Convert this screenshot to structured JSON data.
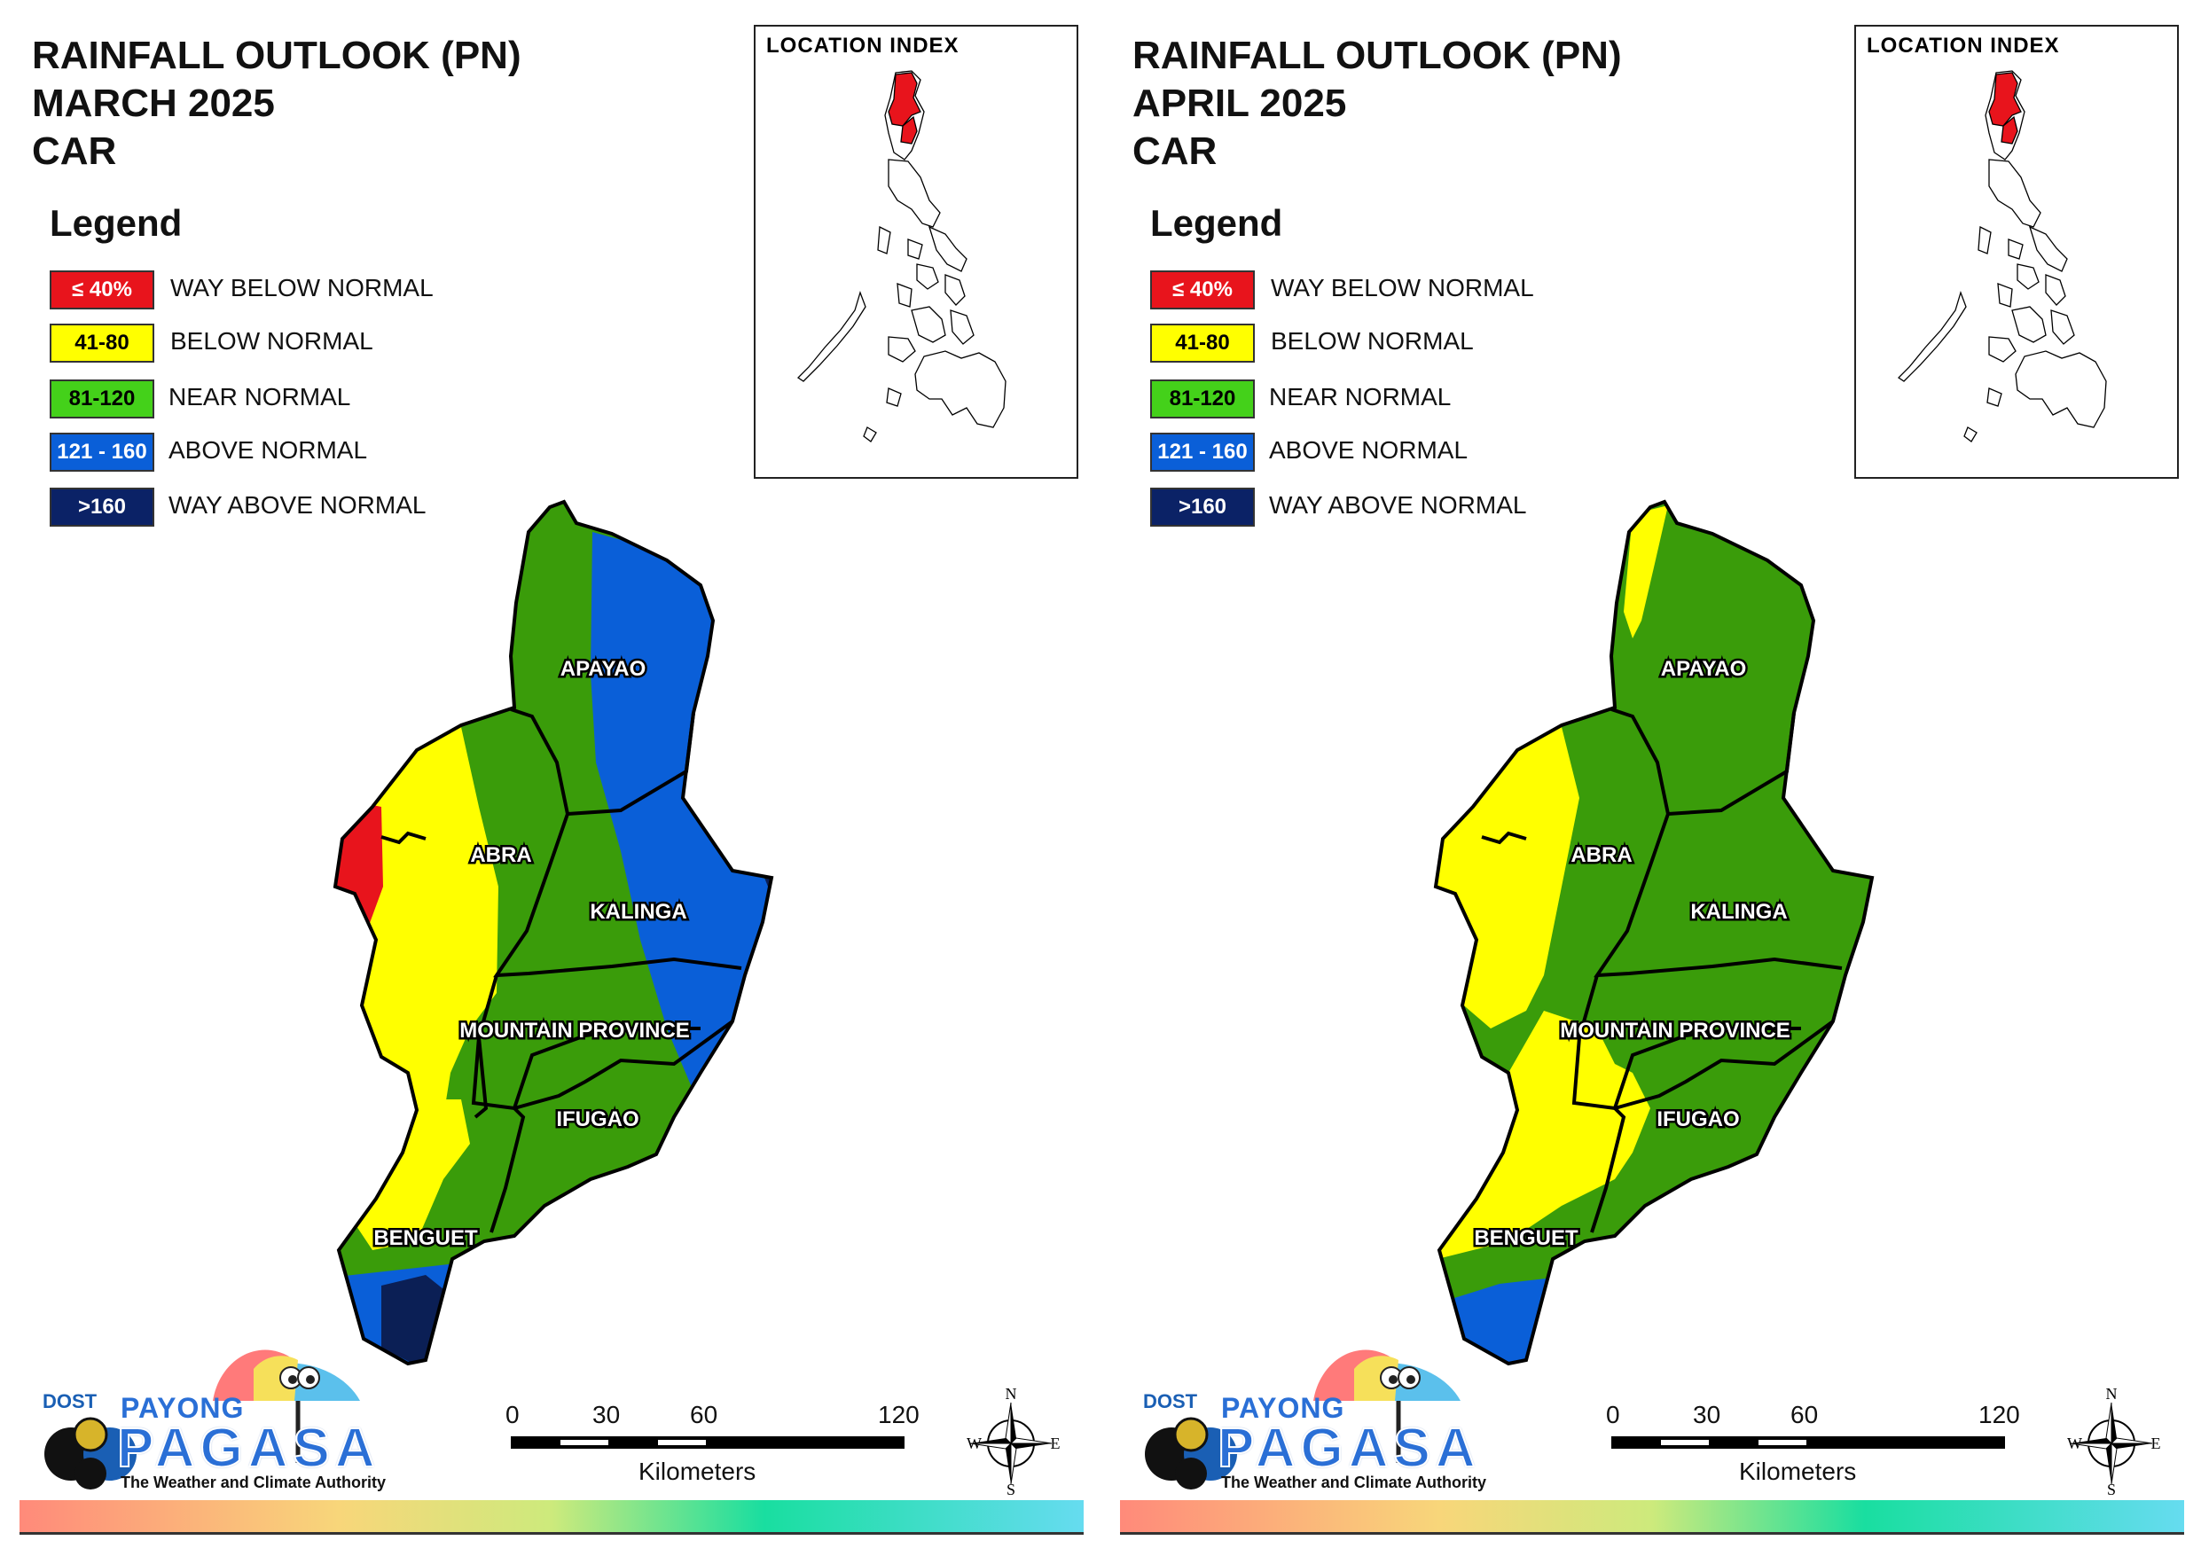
{
  "panels": [
    {
      "title_lines": [
        "RAINFALL OUTLOOK (PN)",
        "MARCH 2025",
        "CAR"
      ],
      "location_index_title": "LOCATION INDEX",
      "provinces": {
        "apayao": "APAYAO",
        "abra": "ABRA",
        "kalinga": "KALINGA",
        "mountain": "MOUNTAIN PROVINCE",
        "ifugao": "IFUGAO",
        "benguet": "BENGUET"
      }
    },
    {
      "title_lines": [
        "RAINFALL OUTLOOK (PN)",
        "APRIL 2025",
        "CAR"
      ],
      "location_index_title": "LOCATION INDEX",
      "provinces": {
        "apayao": "APAYAO",
        "abra": "ABRA",
        "kalinga": "KALINGA",
        "mountain": "MOUNTAIN PROVINCE",
        "ifugao": "IFUGAO",
        "benguet": "BENGUET"
      }
    }
  ],
  "legend": {
    "title": "Legend",
    "items": [
      {
        "range": "≤ 40%",
        "label": "WAY BELOW NORMAL",
        "color": "#e8141c",
        "text_color": "#ffffff"
      },
      {
        "range": "41-80",
        "label": "BELOW NORMAL",
        "color": "#ffff00",
        "text_color": "#000000"
      },
      {
        "range": "81-120",
        "label": "NEAR NORMAL",
        "color": "#44d11a",
        "text_color": "#000000"
      },
      {
        "range": "121 - 160",
        "label": "ABOVE NORMAL",
        "color": "#0a5fd8",
        "text_color": "#ffffff"
      },
      {
        "range": ">160",
        "label": "WAY ABOVE NORMAL",
        "color": "#0b2266",
        "text_color": "#ffffff"
      }
    ]
  },
  "map_colors": {
    "green": "#3a9c0a",
    "yellow": "#ffff00",
    "blue": "#0a5fd8",
    "navy": "#0b1f55",
    "red": "#e8141c"
  },
  "scale_bar": {
    "ticks": [
      "0",
      "30",
      "60",
      "120"
    ],
    "unit": "Kilometers"
  },
  "compass": {
    "n": "N",
    "s": "S",
    "e": "E",
    "w": "W"
  },
  "logo": {
    "dost": "DOST",
    "payong": "PAYONG",
    "pagasa": "PAGASA",
    "tagline": "The Weather and Climate Authority"
  }
}
